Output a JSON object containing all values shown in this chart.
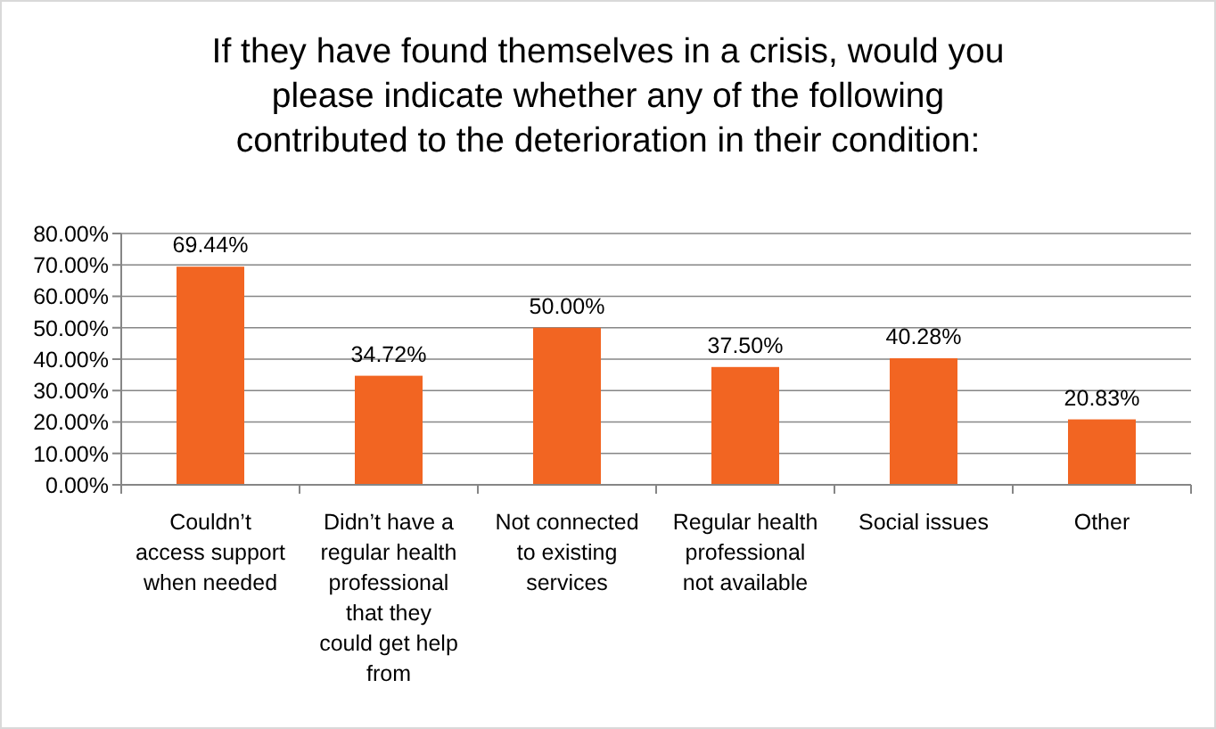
{
  "chart_data": {
    "type": "bar",
    "title": "If they have found themselves in a crisis, would you please indicate whether any of the following contributed to the deterioration in their condition:",
    "categories": [
      "Couldn’t access support when needed",
      "Didn’t have a regular health professional that they could get help from",
      "Not connected to existing services",
      "Regular health professional not available",
      "Social issues",
      "Other"
    ],
    "values": [
      69.44,
      34.72,
      50.0,
      37.5,
      40.28,
      20.83
    ],
    "value_labels": [
      "69.44%",
      "34.72%",
      "50.00%",
      "37.50%",
      "40.28%",
      "20.83%"
    ],
    "color": "#f26522",
    "ylim": [
      0,
      80
    ],
    "yticks": [
      {
        "value": 0,
        "label": "0.00%"
      },
      {
        "value": 10,
        "label": "10.00%"
      },
      {
        "value": 20,
        "label": "20.00%"
      },
      {
        "value": 30,
        "label": "30.00%"
      },
      {
        "value": 40,
        "label": "40.00%"
      },
      {
        "value": 50,
        "label": "50.00%"
      },
      {
        "value": 60,
        "label": "60.00%"
      },
      {
        "value": 70,
        "label": "70.00%"
      },
      {
        "value": 80,
        "label": "80.00%"
      }
    ],
    "grid": "y"
  }
}
